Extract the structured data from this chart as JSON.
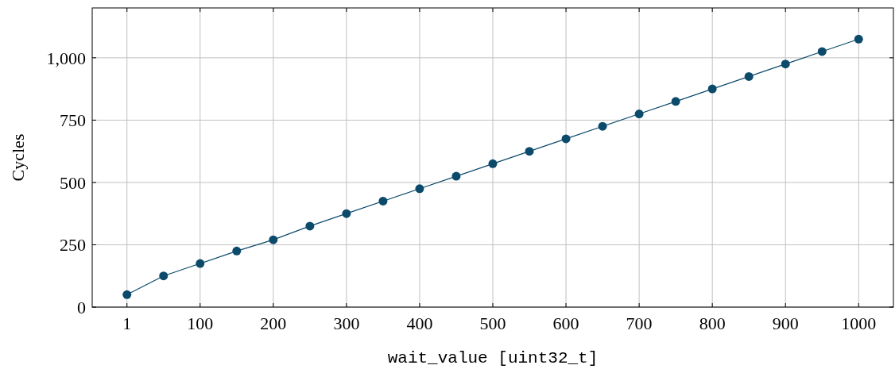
{
  "chart_data": {
    "type": "line",
    "xlabel": "wait_value [uint32_t]",
    "ylabel": "Cycles",
    "categories": [
      "1",
      null,
      "100",
      null,
      "200",
      null,
      "300",
      null,
      "400",
      null,
      "500",
      null,
      "600",
      null,
      "700",
      null,
      "800",
      null,
      "900",
      null,
      "1000"
    ],
    "series": [
      {
        "color": "#0b4a6b",
        "values": [
          50,
          125,
          175,
          225,
          270,
          325,
          375,
          425,
          475,
          525,
          575,
          625,
          675,
          725,
          775,
          825,
          875,
          925,
          975,
          1025,
          1075
        ]
      }
    ],
    "ylim": [
      0,
      1200
    ],
    "yticks": [
      0,
      250,
      500,
      750,
      {
        "value": 1000,
        "label": "1,000"
      }
    ],
    "grid": true,
    "marker": "circle",
    "line_style": "solid"
  }
}
